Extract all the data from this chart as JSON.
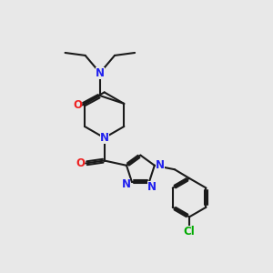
{
  "bg_color": "#e8e8e8",
  "bond_color": "#1a1a1a",
  "N_color": "#2020ee",
  "O_color": "#ee2020",
  "Cl_color": "#00aa00",
  "line_width": 1.5,
  "font_size": 8.5,
  "xlim": [
    0,
    10
  ],
  "ylim": [
    0,
    10
  ]
}
